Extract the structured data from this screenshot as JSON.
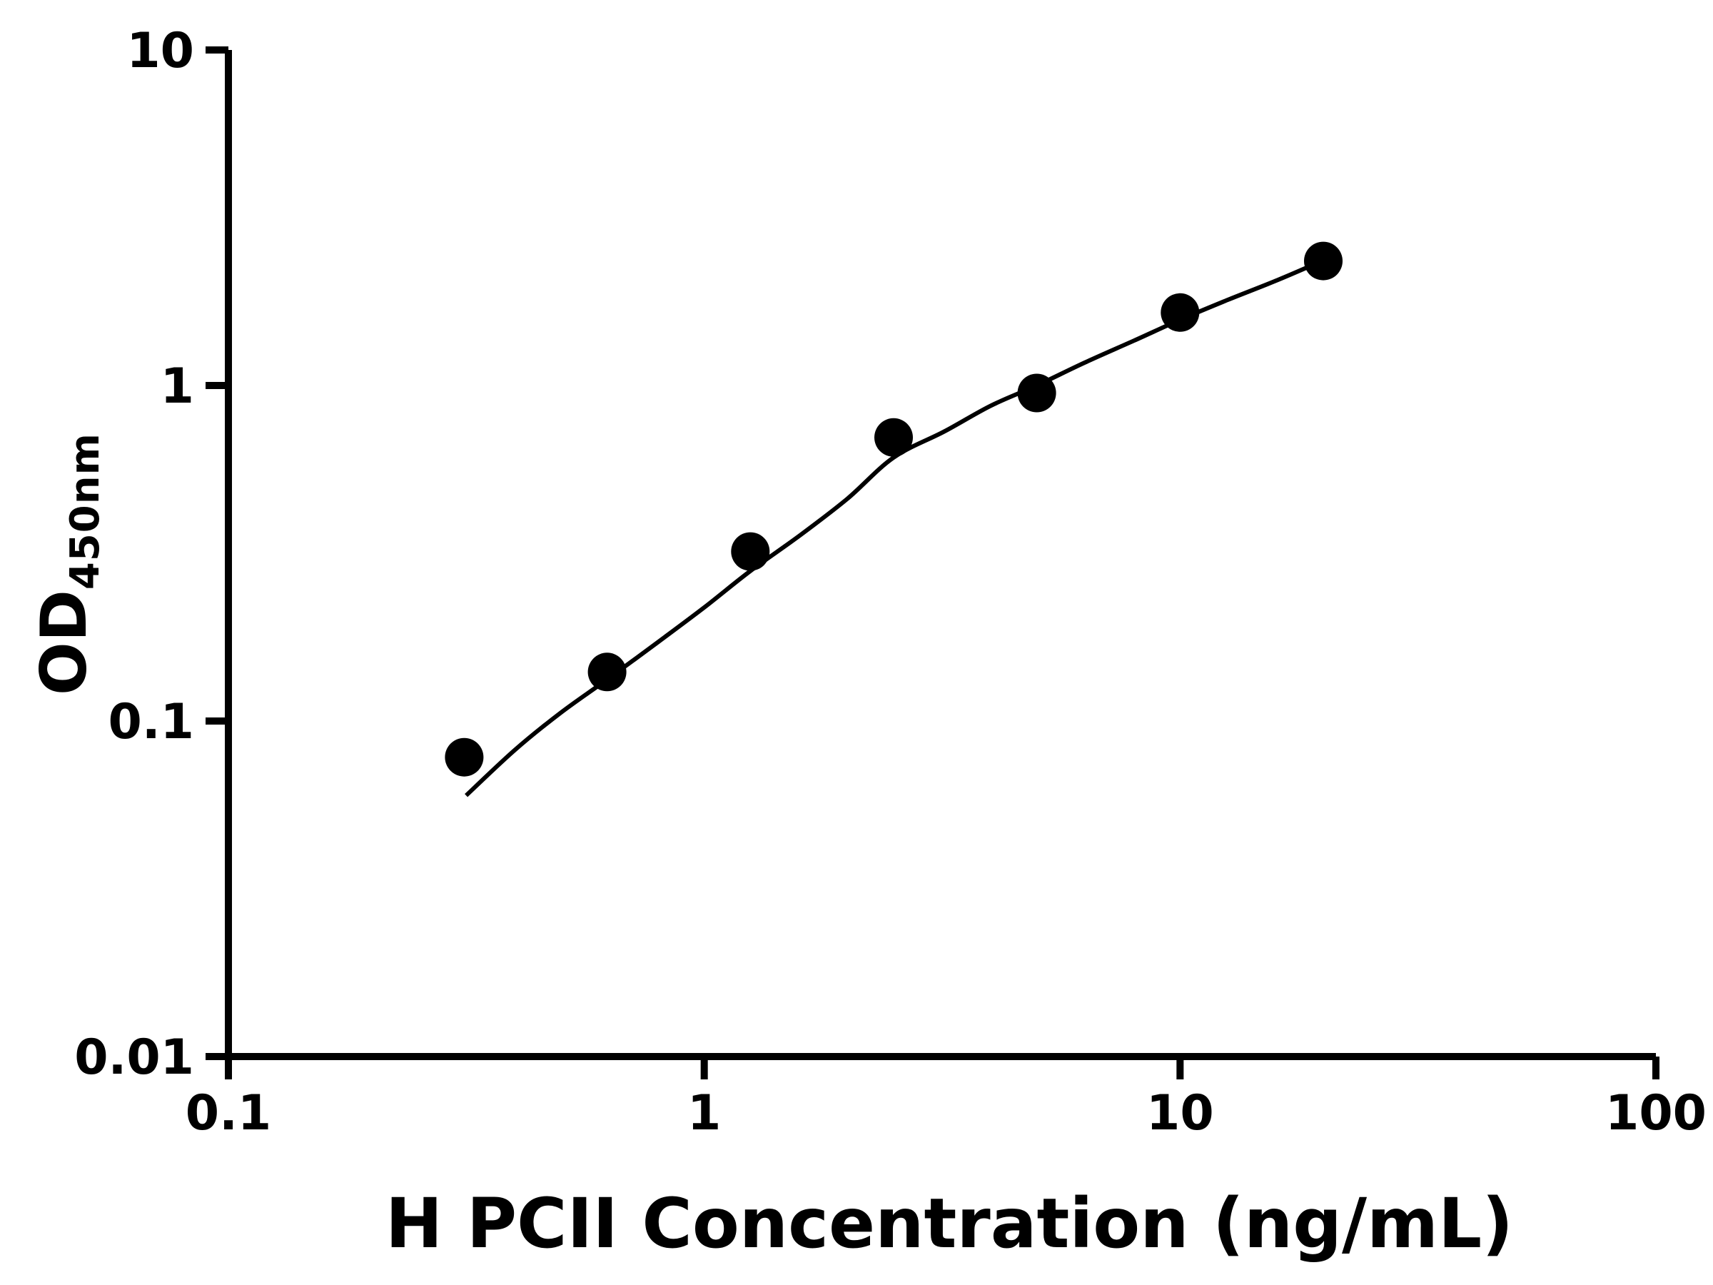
{
  "chart_data": {
    "type": "scatter",
    "title": "",
    "xlabel": "H PCII Concentration (ng/mL)",
    "ylabel_main": "OD",
    "ylabel_sub": "450nm",
    "x_scale": "log",
    "y_scale": "log",
    "xlim": [
      0.1,
      100
    ],
    "ylim": [
      0.01,
      10
    ],
    "grid": false,
    "legend": "none",
    "marker_color": "#000000",
    "line_color": "#000000",
    "axis_color": "#000000",
    "background_color": "#ffffff",
    "x_ticks": [
      {
        "value": 0.1,
        "label": "0.1"
      },
      {
        "value": 1,
        "label": "1"
      },
      {
        "value": 10,
        "label": "10"
      },
      {
        "value": 100,
        "label": "100"
      }
    ],
    "y_ticks": [
      {
        "value": 0.01,
        "label": "0.01"
      },
      {
        "value": 0.1,
        "label": "0.1"
      },
      {
        "value": 1,
        "label": "1"
      },
      {
        "value": 10,
        "label": "10"
      }
    ],
    "points": [
      {
        "x": 0.313,
        "y": 0.078
      },
      {
        "x": 0.625,
        "y": 0.14
      },
      {
        "x": 1.25,
        "y": 0.32
      },
      {
        "x": 2.5,
        "y": 0.7
      },
      {
        "x": 5,
        "y": 0.95
      },
      {
        "x": 10,
        "y": 1.65
      },
      {
        "x": 20,
        "y": 2.35
      }
    ],
    "fit_curve": [
      {
        "x": 0.316,
        "y": 0.06
      },
      {
        "x": 0.4,
        "y": 0.082
      },
      {
        "x": 0.5,
        "y": 0.106
      },
      {
        "x": 0.625,
        "y": 0.133
      },
      {
        "x": 0.8,
        "y": 0.172
      },
      {
        "x": 1.0,
        "y": 0.218
      },
      {
        "x": 1.25,
        "y": 0.28
      },
      {
        "x": 1.6,
        "y": 0.36
      },
      {
        "x": 2.0,
        "y": 0.46
      },
      {
        "x": 2.5,
        "y": 0.61
      },
      {
        "x": 3.2,
        "y": 0.73
      },
      {
        "x": 4.0,
        "y": 0.87
      },
      {
        "x": 5.0,
        "y": 1.0
      },
      {
        "x": 6.3,
        "y": 1.17
      },
      {
        "x": 8.0,
        "y": 1.36
      },
      {
        "x": 10,
        "y": 1.57
      },
      {
        "x": 12.6,
        "y": 1.8
      },
      {
        "x": 16,
        "y": 2.06
      },
      {
        "x": 20,
        "y": 2.36
      }
    ]
  }
}
